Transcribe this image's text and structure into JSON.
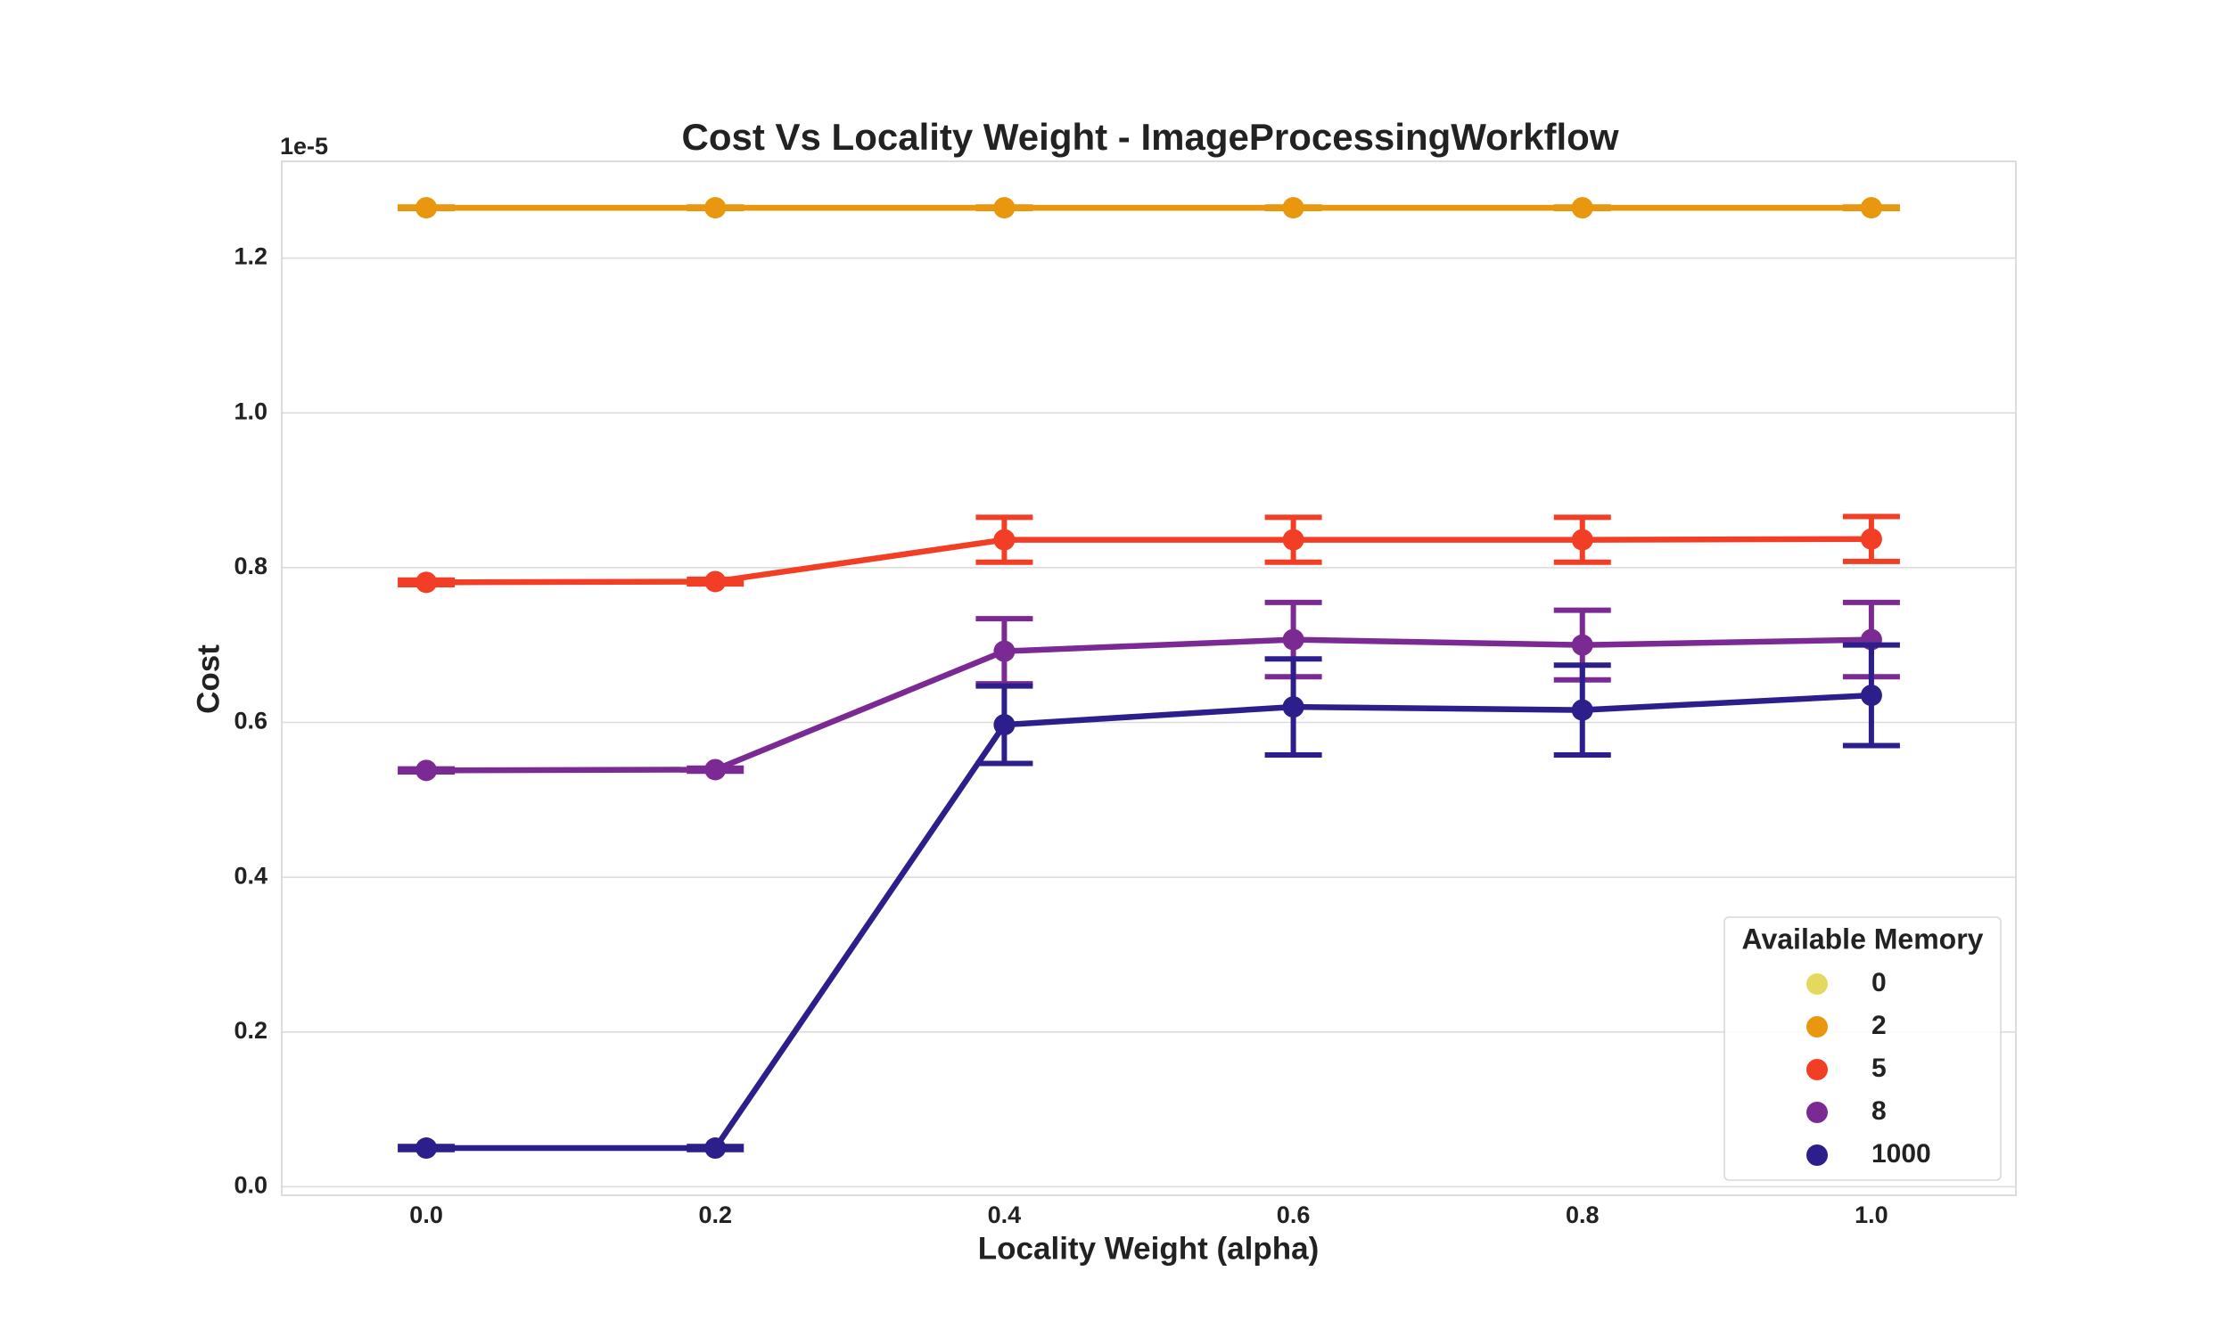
{
  "chart_data": {
    "type": "line",
    "title": "Cost Vs Locality Weight - ImageProcessingWorkflow",
    "x_label": "Locality Weight (alpha)",
    "y_label": "Cost",
    "y_offset_label": "1e-5",
    "categories": [
      "0.0",
      "0.2",
      "0.4",
      "0.6",
      "0.8",
      "1.0"
    ],
    "ylim": [
      -0.011,
      1.325
    ],
    "yticks": [
      {
        "value": 0,
        "label": "0.0"
      },
      0.2,
      0.4,
      0.6,
      0.8,
      {
        "value": 1,
        "label": "1.0"
      },
      1.2
    ],
    "grid": true,
    "legend": {
      "title": "Available Memory",
      "position": "lower right"
    },
    "series": [
      {
        "name": "0",
        "color": "#e3d95e",
        "values": [
          1.265,
          1.265,
          1.265,
          1.265,
          1.265,
          1.265
        ],
        "errors": [
          0.001,
          0.001,
          0.001,
          0.001,
          0.001,
          0.001
        ]
      },
      {
        "name": "2",
        "color": "#e8970f",
        "values": [
          1.265,
          1.265,
          1.265,
          1.265,
          1.265,
          1.265
        ],
        "errors": [
          0.001,
          0.001,
          0.001,
          0.001,
          0.001,
          0.001
        ]
      },
      {
        "name": "5",
        "color": "#f23e24",
        "values": [
          0.781,
          0.782,
          0.836,
          0.836,
          0.836,
          0.837
        ],
        "errors": [
          0.003,
          0.003,
          0.029,
          0.029,
          0.029,
          0.029
        ]
      },
      {
        "name": "8",
        "color": "#7b2a94",
        "values": [
          0.538,
          0.539,
          0.692,
          0.707,
          0.7,
          0.707
        ],
        "errors": [
          0.002,
          0.002,
          0.042,
          0.048,
          0.045,
          0.048
        ]
      },
      {
        "name": "1000",
        "color": "#2c1f8c",
        "values": [
          0.05,
          0.05,
          0.597,
          0.62,
          0.616,
          0.635
        ],
        "errors": [
          0.002,
          0.002,
          0.05,
          0.062,
          0.058,
          0.065
        ]
      }
    ]
  }
}
